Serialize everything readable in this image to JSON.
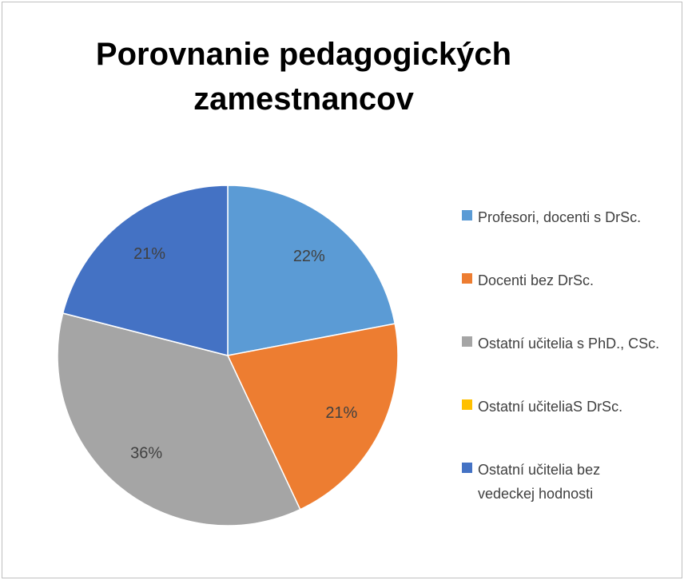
{
  "chart_data": {
    "type": "pie",
    "title": "Porovnanie pedagogických zamestnancov",
    "categories": [
      "Profesori, docenti s DrSc.",
      "Docenti bez DrSc.",
      "Ostatní učitelia s PhD., CSc.",
      "Ostatní učiteliaS DrSc.",
      "Ostatní učitelia bez vedeckej hodnosti"
    ],
    "values": [
      22,
      21,
      36,
      0,
      21
    ],
    "value_labels": [
      "22%",
      "21%",
      "36%",
      null,
      "21%"
    ],
    "colors": [
      "#5b9bd5",
      "#ed7d31",
      "#a5a5a5",
      "#ffc000",
      "#4472c4"
    ],
    "legend": "right"
  }
}
